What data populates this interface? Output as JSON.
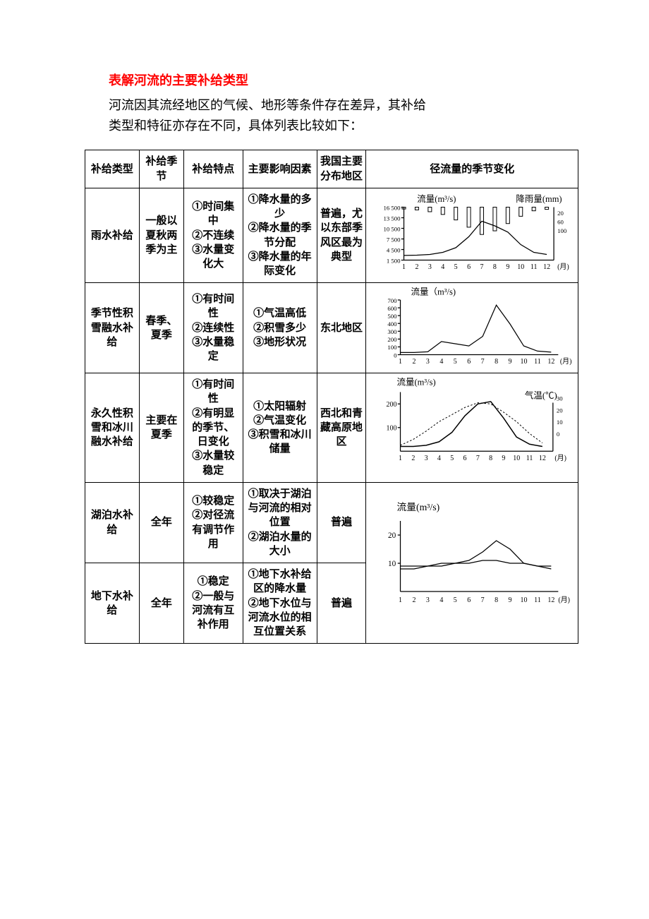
{
  "title": "表解河流的主要补给类型",
  "intro_line1": "河流因其流经地区的气候、地形等条件存在差异，其补给",
  "intro_line2": "类型和特征亦存在不同，具体列表比较如下：",
  "headers": {
    "type": "补给类型",
    "season": "补给季节",
    "feature": "补给特点",
    "factor": "主要影响因素",
    "area": "我国主要分布地区",
    "chart": "径流量的季节变化"
  },
  "rows": [
    {
      "type": "雨水补给",
      "season": "一般以夏秋两季为主",
      "feature": "①时间集中\n②不连续\n③水量变化大",
      "factor": "①降水量的多少\n②降水量的季节分配\n③降水量的年际变化",
      "area": "普遍，尤以东部季风区最为典型"
    },
    {
      "type": "季节性积雪融水补给",
      "season": "春季、夏季",
      "feature": "①有时间性\n②连续性\n③水量稳定",
      "factor": "①气温高低\n②积雪多少\n③地形状况",
      "area": "东北地区"
    },
    {
      "type": "永久性积雪和冰川融水补给",
      "season": "主要在夏季",
      "feature": "①有时间性\n②有明显的季节、日变化\n③水量较稳定",
      "factor": "①太阳辐射\n②气温变化\n③积雪和冰川储量",
      "area": "西北和青藏高原地区"
    },
    {
      "type": "湖泊水补给",
      "season": "全年",
      "feature": "①较稳定\n②对径流有调节作用",
      "factor": "①取决于湖泊与河流的相对位置\n②湖泊水量的大小",
      "area": "普遍"
    },
    {
      "type": "地下水补给",
      "season": "全年",
      "feature": "①稳定\n②一般与河流有互补作用",
      "factor": "①地下水补给区的降水量\n②地下水位与河流水位的相互位置关系",
      "area": "普遍"
    }
  ],
  "chart1": {
    "flow_label": "流量(m³/s)",
    "rain_label": "降雨量(mm)",
    "yticks": [
      "16 500",
      "13 500",
      "10 500",
      "7 500",
      "4 500",
      "1 500"
    ],
    "yticks_r": [
      "20",
      "60",
      "100"
    ],
    "xticks": [
      "1",
      "2",
      "3",
      "4",
      "5",
      "6",
      "7",
      "8",
      "9",
      "10",
      "11",
      "12"
    ],
    "xlabel": "(月)",
    "flow_pts": [
      [
        1,
        1500
      ],
      [
        2,
        1600
      ],
      [
        3,
        1800
      ],
      [
        4,
        2500
      ],
      [
        5,
        4000
      ],
      [
        6,
        7500
      ],
      [
        7,
        12500
      ],
      [
        8,
        11000
      ],
      [
        9,
        9000
      ],
      [
        10,
        5000
      ],
      [
        11,
        2500
      ],
      [
        12,
        1800
      ]
    ],
    "rain_bars": [
      [
        1,
        10
      ],
      [
        2,
        15
      ],
      [
        3,
        25
      ],
      [
        4,
        40
      ],
      [
        5,
        70
      ],
      [
        6,
        110
      ],
      [
        7,
        150
      ],
      [
        8,
        130
      ],
      [
        9,
        90
      ],
      [
        10,
        50
      ],
      [
        11,
        20
      ],
      [
        12,
        12
      ]
    ],
    "ylim": [
      0,
      17000
    ],
    "rlim": [
      0,
      160
    ],
    "color": "#000000"
  },
  "chart2": {
    "flow_label": "流量（m³/s)",
    "yticks": [
      "700",
      "600",
      "500",
      "400",
      "300",
      "200",
      "100",
      "0"
    ],
    "xticks": [
      "1",
      "2",
      "3",
      "4",
      "5",
      "6",
      "7",
      "8",
      "9",
      "10",
      "11",
      "12"
    ],
    "xlabel": "(月)",
    "flow_pts": [
      [
        1,
        30
      ],
      [
        2,
        30
      ],
      [
        3,
        40
      ],
      [
        4,
        180
      ],
      [
        5,
        150
      ],
      [
        6,
        120
      ],
      [
        7,
        250
      ],
      [
        8,
        680
      ],
      [
        9,
        420
      ],
      [
        10,
        120
      ],
      [
        11,
        50
      ],
      [
        12,
        35
      ]
    ],
    "ylim": [
      0,
      750
    ],
    "color": "#000000"
  },
  "chart3": {
    "flow_label": "流量(m³/s)",
    "temp_label": "气温(℃)",
    "yticks": [
      "200",
      "100"
    ],
    "yticks_r": [
      "30",
      "20",
      "10",
      "0"
    ],
    "xticks": [
      "1",
      "2",
      "3",
      "4",
      "5",
      "6",
      "7",
      "8",
      "9",
      "10",
      "11",
      "12"
    ],
    "xlabel": "(月)",
    "flow_pts": [
      [
        1,
        20
      ],
      [
        2,
        20
      ],
      [
        3,
        25
      ],
      [
        4,
        40
      ],
      [
        5,
        80
      ],
      [
        6,
        150
      ],
      [
        7,
        200
      ],
      [
        8,
        210
      ],
      [
        9,
        140
      ],
      [
        10,
        60
      ],
      [
        11,
        30
      ],
      [
        12,
        20
      ]
    ],
    "temp_pts": [
      [
        1,
        -10
      ],
      [
        2,
        -5
      ],
      [
        3,
        2
      ],
      [
        4,
        10
      ],
      [
        5,
        16
      ],
      [
        6,
        22
      ],
      [
        7,
        26
      ],
      [
        8,
        25
      ],
      [
        9,
        18
      ],
      [
        10,
        10
      ],
      [
        11,
        0
      ],
      [
        12,
        -8
      ]
    ],
    "ylim": [
      0,
      250
    ],
    "tlim": [
      -15,
      35
    ],
    "color": "#000000"
  },
  "chart45": {
    "flow_label": "流量(m³/s)",
    "yticks": [
      "20",
      "10"
    ],
    "xticks": [
      "1",
      "2",
      "3",
      "4",
      "5",
      "6",
      "7",
      "8",
      "9",
      "10",
      "11",
      "12"
    ],
    "xlabel": "(月)",
    "flow_lake": [
      [
        1,
        8
      ],
      [
        2,
        8
      ],
      [
        3,
        9
      ],
      [
        4,
        9
      ],
      [
        5,
        10
      ],
      [
        6,
        11
      ],
      [
        7,
        14
      ],
      [
        8,
        18
      ],
      [
        9,
        15
      ],
      [
        10,
        10
      ],
      [
        11,
        9
      ],
      [
        12,
        8
      ]
    ],
    "flow_gw": [
      [
        1,
        9
      ],
      [
        2,
        9
      ],
      [
        3,
        9
      ],
      [
        4,
        10
      ],
      [
        5,
        10
      ],
      [
        6,
        10
      ],
      [
        7,
        11
      ],
      [
        8,
        11
      ],
      [
        9,
        10
      ],
      [
        10,
        10
      ],
      [
        11,
        9
      ],
      [
        12,
        9
      ]
    ],
    "ylim": [
      0,
      25
    ],
    "color": "#000000"
  }
}
